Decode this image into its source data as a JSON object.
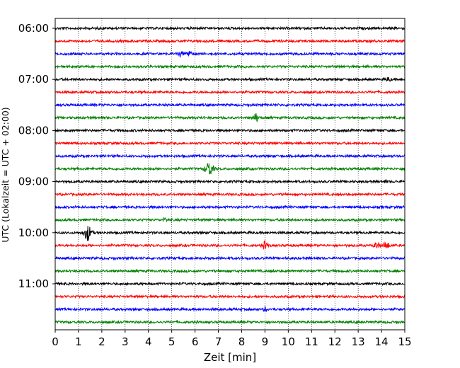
{
  "chart_data": {
    "type": "line",
    "subtype": "helicorder",
    "title": "",
    "xlabel": "Zeit  [min]",
    "ylabel": "UTC (Lokalzeit = UTC + 02:00)",
    "xlim": [
      0,
      15
    ],
    "x_ticks": [
      "0",
      "1",
      "2",
      "3",
      "4",
      "5",
      "6",
      "7",
      "8",
      "9",
      "10",
      "11",
      "12",
      "13",
      "14",
      "15"
    ],
    "y_tick_labels": [
      "06:00",
      "07:00",
      "08:00",
      "09:00",
      "10:00",
      "11:00"
    ],
    "grid_x": true,
    "trace_interval_minutes": 15,
    "trace_color_cycle": [
      "#000000",
      "#ff0000",
      "#0000ff",
      "#008000"
    ],
    "traces": [
      {
        "start": "06:00",
        "events": [
          {
            "x": 14.6,
            "amp": 0.25
          }
        ]
      },
      {
        "start": "06:15",
        "events": [
          {
            "x": 2.8,
            "amp": 0.2
          }
        ]
      },
      {
        "start": "06:30",
        "events": [
          {
            "x": 5.4,
            "amp": 0.55
          },
          {
            "x": 5.7,
            "amp": 0.7
          }
        ]
      },
      {
        "start": "06:45",
        "events": [
          {
            "x": 3.1,
            "amp": 0.2
          }
        ]
      },
      {
        "start": "07:00",
        "events": [
          {
            "x": 14.3,
            "amp": 0.5
          }
        ]
      },
      {
        "start": "07:15",
        "events": []
      },
      {
        "start": "07:30",
        "events": []
      },
      {
        "start": "07:45",
        "events": [
          {
            "x": 8.6,
            "amp": 0.85
          }
        ]
      },
      {
        "start": "08:00",
        "events": [
          {
            "x": 5.6,
            "amp": 0.2
          }
        ]
      },
      {
        "start": "08:15",
        "events": []
      },
      {
        "start": "08:30",
        "events": []
      },
      {
        "start": "08:45",
        "events": [
          {
            "x": 6.6,
            "amp": 1.5
          }
        ]
      },
      {
        "start": "09:00",
        "events": [
          {
            "x": 14.2,
            "amp": 0.3
          }
        ]
      },
      {
        "start": "09:15",
        "events": [
          {
            "x": 9.8,
            "amp": 0.2
          }
        ]
      },
      {
        "start": "09:30",
        "events": [
          {
            "x": 14.0,
            "amp": 0.25
          }
        ]
      },
      {
        "start": "09:45",
        "events": [
          {
            "x": 4.7,
            "amp": 0.4
          }
        ]
      },
      {
        "start": "10:00",
        "events": [
          {
            "x": 1.4,
            "amp": 1.5
          }
        ]
      },
      {
        "start": "10:15",
        "events": [
          {
            "x": 9.0,
            "amp": 0.8
          },
          {
            "x": 13.8,
            "amp": 0.7
          },
          {
            "x": 14.2,
            "amp": 0.8
          }
        ]
      },
      {
        "start": "10:30",
        "events": []
      },
      {
        "start": "10:45",
        "events": []
      },
      {
        "start": "11:00",
        "events": [
          {
            "x": 0.4,
            "amp": 0.25
          }
        ]
      },
      {
        "start": "11:15",
        "events": []
      },
      {
        "start": "11:30",
        "events": [
          {
            "x": 9.0,
            "amp": 0.45
          }
        ]
      },
      {
        "start": "11:45",
        "events": []
      }
    ]
  }
}
